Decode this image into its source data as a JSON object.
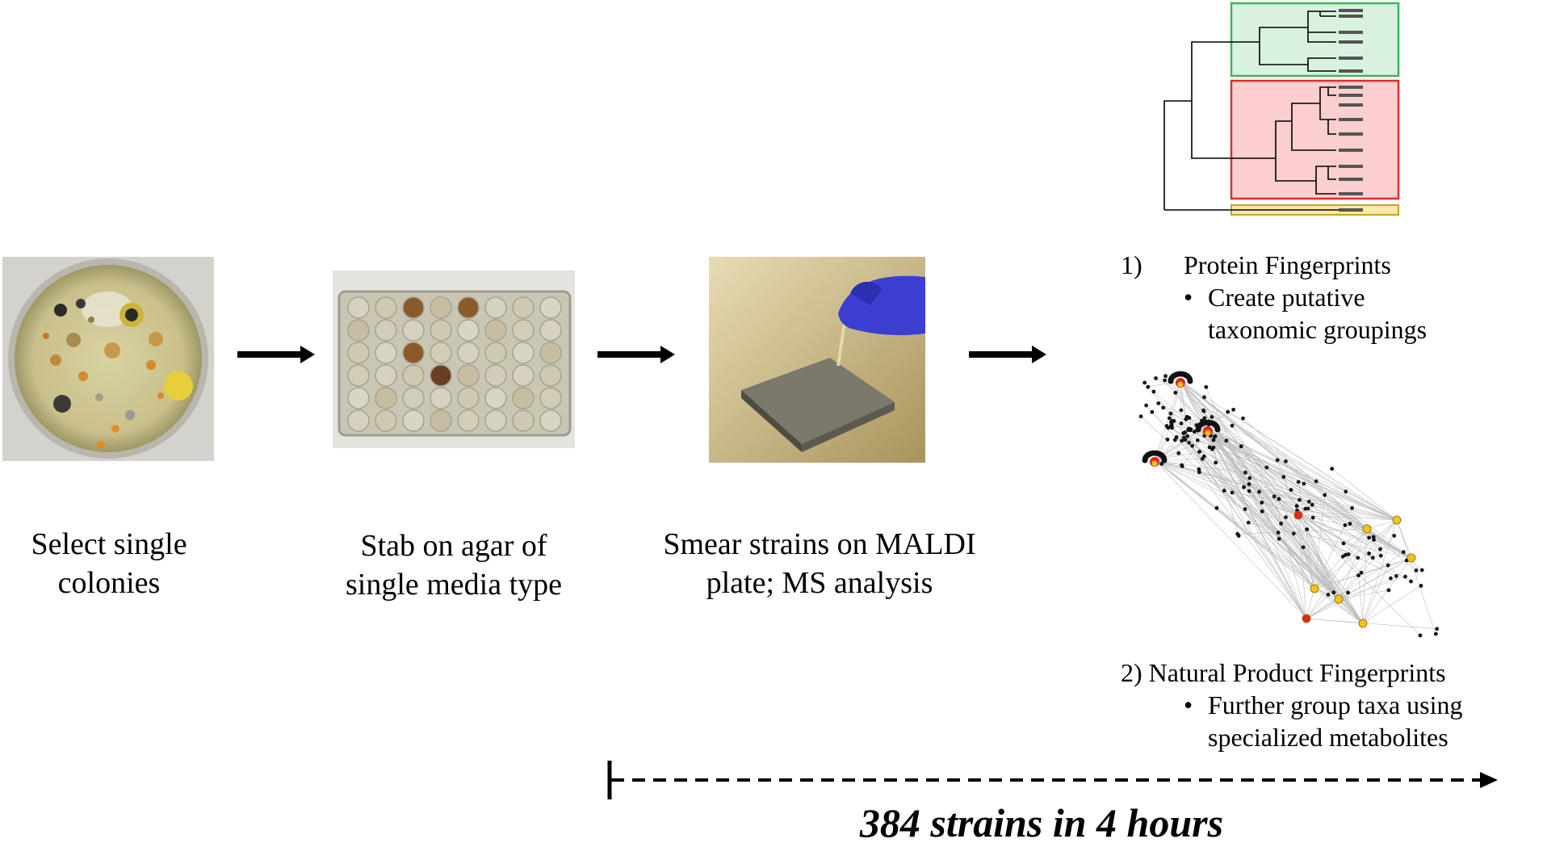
{
  "steps": [
    {
      "label_line1": "Select single",
      "label_line2": "colonies",
      "image": "petri-dish-with-colonies"
    },
    {
      "label_line1": "Stab on agar of",
      "label_line2": "single media type",
      "image": "48-well-agar-plate"
    },
    {
      "label_line1": "Smear strains on MALDI",
      "label_line2": "plate; MS analysis",
      "image": "gloved-hand-on-maldi-plate"
    }
  ],
  "results": {
    "protein": {
      "number": "1)",
      "title": "Protein Fingerprints",
      "bullet_line1": "Create putative",
      "bullet_line2": "taxonomic groupings"
    },
    "natural_product": {
      "title": "2) Natural Product Fingerprints",
      "bullet_line1": "Further group taxa using",
      "bullet_line2": "specialized metabolites"
    },
    "bullet_char": "•"
  },
  "timeline": {
    "label": "384 strains in 4 hours"
  },
  "colors": {
    "group_green_fill": "#d8f2df",
    "group_green_border": "#3cb55a",
    "group_red_fill": "#fbcfcf",
    "group_red_border": "#e22b2b",
    "group_yellow_fill": "#fbeaa6",
    "group_yellow_border": "#c9a227",
    "node_red": "#e8251a",
    "node_yellow": "#f4c21c"
  }
}
